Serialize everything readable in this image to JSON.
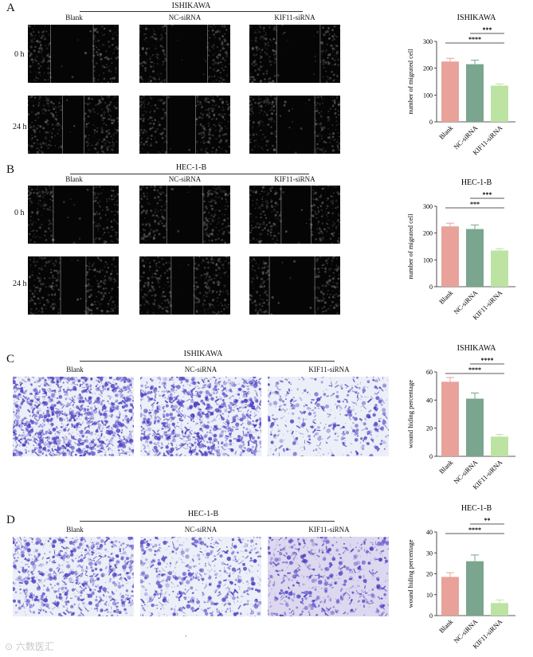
{
  "panels": [
    {
      "letter": "A",
      "title": "ISHIKAWA",
      "type": "wound",
      "columns": [
        "Blank",
        "NC-siRNA",
        "KIF11-siRNA"
      ],
      "rows": [
        "0 h",
        "24 h"
      ]
    },
    {
      "letter": "B",
      "title": "HEC-1-B",
      "type": "wound",
      "columns": [
        "Blank",
        "NC-siRNA",
        "KIF11-siRNA"
      ],
      "rows": [
        "0 h",
        "24 h"
      ]
    },
    {
      "letter": "C",
      "title": "ISHIKAWA",
      "type": "transwell",
      "columns": [
        "Blank",
        "NC-siRNA",
        "KIF11-siRNA"
      ]
    },
    {
      "letter": "D",
      "title": "HEC-1-B",
      "type": "transwell",
      "columns": [
        "Blank",
        "NC-siRNA",
        "KIF11-siRNA"
      ]
    }
  ],
  "colors": {
    "blank": "#e8a29a",
    "nc": "#7aa58e",
    "kif": "#bde3a3"
  },
  "chart_data": [
    {
      "type": "bar",
      "title": "ISHIKAWA",
      "ylabel": "number of migrated cell",
      "categories": [
        "Blank",
        "NC-siRNA",
        "KIF11-siRNA"
      ],
      "values": [
        225,
        215,
        135
      ],
      "errors": [
        12,
        15,
        6
      ],
      "ylim": [
        0,
        300
      ],
      "yticks": [
        0,
        100,
        200,
        300
      ],
      "sig": [
        {
          "from": 1,
          "to": 2,
          "label": "***"
        },
        {
          "from": 0,
          "to": 2,
          "label": "****"
        }
      ]
    },
    {
      "type": "bar",
      "title": "HEC-1-B",
      "ylabel": "number of migrated cell",
      "categories": [
        "Blank",
        "NC-siRNA",
        "KIF11-siRNA"
      ],
      "values": [
        225,
        215,
        135
      ],
      "errors": [
        12,
        15,
        6
      ],
      "ylim": [
        0,
        300
      ],
      "yticks": [
        0,
        100,
        200,
        300
      ],
      "sig": [
        {
          "from": 1,
          "to": 2,
          "label": "***"
        },
        {
          "from": 0,
          "to": 2,
          "label": "***"
        }
      ]
    },
    {
      "type": "bar",
      "title": "ISHIKAWA",
      "ylabel": "wound hiding percentage",
      "categories": [
        "Blank",
        "NC-siRNA",
        "KIF11-siRNA"
      ],
      "values": [
        53,
        41,
        14
      ],
      "errors": [
        3,
        4,
        1.5
      ],
      "ylim": [
        0,
        60
      ],
      "yticks": [
        0,
        20,
        40,
        60
      ],
      "sig": [
        {
          "from": 1,
          "to": 2,
          "label": "****"
        },
        {
          "from": 0,
          "to": 2,
          "label": "****"
        }
      ]
    },
    {
      "type": "bar",
      "title": "HEC-1-B",
      "ylabel": "wound hiding percentage",
      "categories": [
        "Blank",
        "NC-siRNA",
        "KIF11-siRNA"
      ],
      "values": [
        18.5,
        26,
        6
      ],
      "errors": [
        2,
        3,
        1.5
      ],
      "ylim": [
        0,
        40
      ],
      "yticks": [
        0,
        10,
        20,
        30,
        40
      ],
      "sig": [
        {
          "from": 1,
          "to": 2,
          "label": "**"
        },
        {
          "from": 0,
          "to": 2,
          "label": "****"
        }
      ]
    }
  ],
  "watermark": "六数医汇",
  "footer_mark": "-"
}
